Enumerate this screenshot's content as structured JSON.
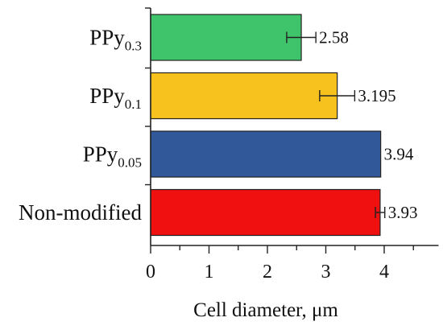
{
  "chart_data": {
    "type": "bar",
    "orientation": "horizontal",
    "categories": [
      {
        "base": "PPy",
        "sub": "0.3"
      },
      {
        "base": "PPy",
        "sub": "0.1"
      },
      {
        "base": "PPy",
        "sub": "0.05"
      },
      {
        "base": "Non-modified",
        "sub": ""
      }
    ],
    "values": [
      2.58,
      3.195,
      3.94,
      3.93
    ],
    "value_labels": [
      "2.58",
      "3.195",
      "3.94",
      "3.93"
    ],
    "errors": [
      0.25,
      0.3,
      0.0,
      0.08
    ],
    "colors": [
      "#3fc46b",
      "#f7c21e",
      "#31599a",
      "#f01010"
    ],
    "xlabel": "Cell diameter, μm",
    "xlim": [
      0,
      5
    ],
    "xticks": [
      "0",
      "1",
      "2",
      "3",
      "4"
    ],
    "grid": false
  }
}
